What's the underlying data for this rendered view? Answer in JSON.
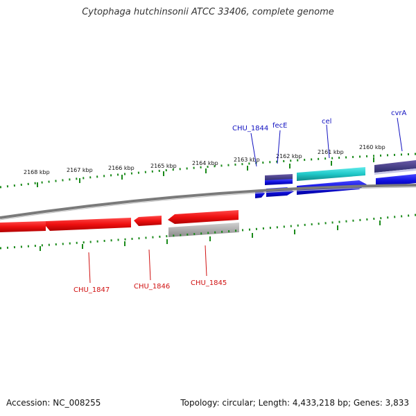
{
  "title": "Cytophaga hutchinsonii ATCC 33406, complete genome",
  "footer": {
    "accession": "Accession: NC_008255",
    "summary": "Topology: circular; Length: 4,433,218 bp; Genes: 3,833"
  },
  "ruler": {
    "labels": [
      "2168 kbp",
      "2167 kbp",
      "2166 kbp",
      "2165 kbp",
      "2164 kbp",
      "2163 kbp",
      "2162 kbp",
      "2161 kbp",
      "2160 kbp"
    ]
  },
  "genes": {
    "forward": [
      {
        "name": "CHU_1844",
        "color": "#1010d8"
      },
      {
        "name": "fecE",
        "color": "#2a2ad8"
      },
      {
        "name": "cel",
        "color": "#20c8c8"
      },
      {
        "name": "cvrA",
        "color": "#1414e0"
      }
    ],
    "reverse": [
      {
        "name": "CHU_1847",
        "color": "#ee1010"
      },
      {
        "name": "CHU_1846",
        "color": "#ee1010"
      },
      {
        "name": "CHU_1845",
        "color": "#ee1010"
      }
    ]
  },
  "colors": {
    "backbone": "#808080",
    "ticks": "#1a8a1a",
    "cds_forward": "#1010d8",
    "cds_reverse": "#ee1010",
    "rna_track": "#4a3a8a",
    "pseudo_track": "#a8a8a8"
  }
}
